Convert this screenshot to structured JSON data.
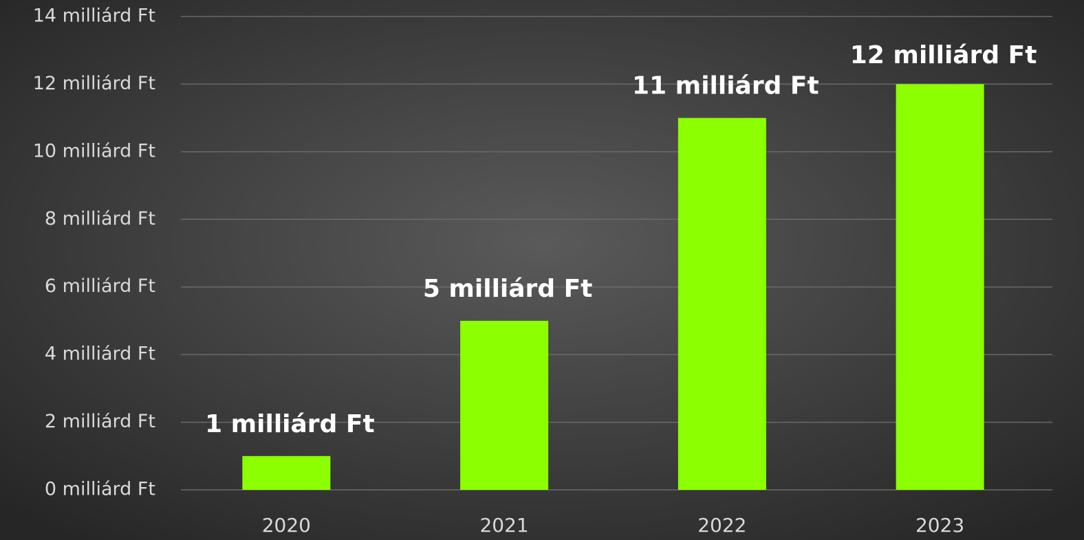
{
  "chart_data": {
    "type": "bar",
    "categories": [
      "2020",
      "2021",
      "2022",
      "2023"
    ],
    "values": [
      1,
      5,
      11,
      12
    ],
    "value_labels": [
      "1 milliárd Ft",
      "5 milliárd Ft",
      "11 milliárd Ft",
      "12 milliárd Ft"
    ],
    "color": "#8cff00",
    "ylim": [
      0,
      14
    ],
    "yticks": [
      {
        "value": 0,
        "label": "0 milliárd Ft"
      },
      {
        "value": 2,
        "label": "2 milliárd Ft"
      },
      {
        "value": 4,
        "label": "4 milliárd Ft"
      },
      {
        "value": 6,
        "label": "6 milliárd Ft"
      },
      {
        "value": 8,
        "label": "8 milliárd Ft"
      },
      {
        "value": 10,
        "label": "10 milliárd Ft"
      },
      {
        "value": 12,
        "label": "12 milliárd Ft"
      },
      {
        "value": 14,
        "label": "14 milliárd Ft"
      }
    ],
    "grid": true
  }
}
